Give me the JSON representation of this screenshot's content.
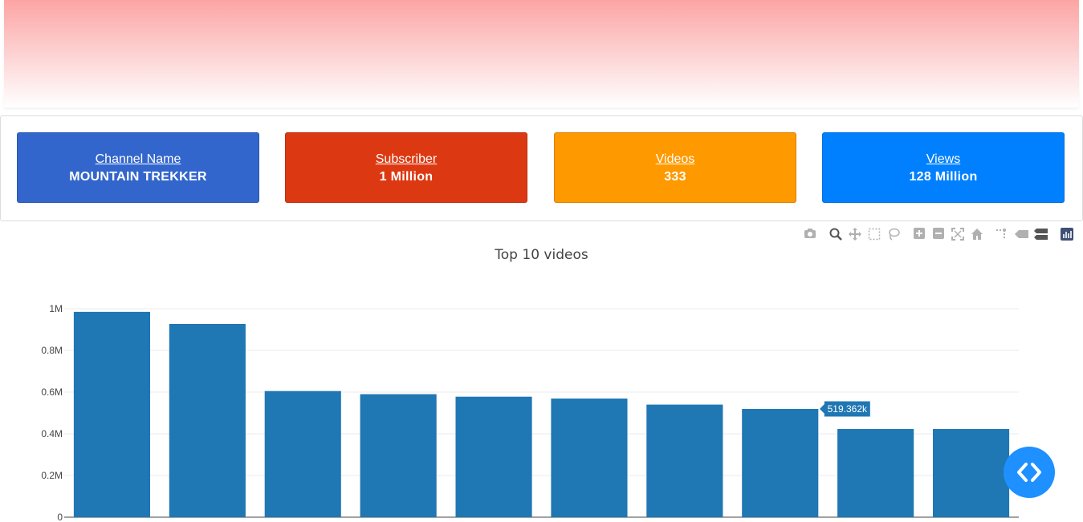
{
  "cards": [
    {
      "label": "Channel Name",
      "value": "MOUNTAIN TREKKER",
      "color": "#3366cc"
    },
    {
      "label": "Subscriber",
      "value": "1 Million",
      "color": "#dc3912"
    },
    {
      "label": "Videos",
      "value": "333",
      "color": "#ff9900"
    },
    {
      "label": "Views",
      "value": "128 Million",
      "color": "#0080ff"
    }
  ],
  "modebar": {
    "icons": [
      "camera-icon",
      "zoom-icon",
      "pan-icon",
      "box-select-icon",
      "lasso-icon",
      "zoom-in-icon",
      "zoom-out-icon",
      "autoscale-icon",
      "reset-axes-icon",
      "spike-lines-icon",
      "hover-closest-icon",
      "hover-compare-icon",
      "plotly-logo-icon"
    ]
  },
  "chart_data": {
    "type": "bar",
    "title": "Top 10 videos",
    "values": [
      985000,
      927000,
      605000,
      590000,
      578000,
      569000,
      540000,
      519362,
      423000,
      423000
    ],
    "ylim": [
      0,
      1050000
    ],
    "yticks": [
      {
        "v": 0,
        "label": "0"
      },
      {
        "v": 200000,
        "label": "0.2M"
      },
      {
        "v": 400000,
        "label": "0.4M"
      },
      {
        "v": 600000,
        "label": "0.6M"
      },
      {
        "v": 800000,
        "label": "0.8M"
      },
      {
        "v": 1000000,
        "label": "1M"
      }
    ],
    "bar_color": "#1f77b4",
    "grid": true,
    "hover": {
      "index": 7,
      "label": "519.362k"
    }
  }
}
